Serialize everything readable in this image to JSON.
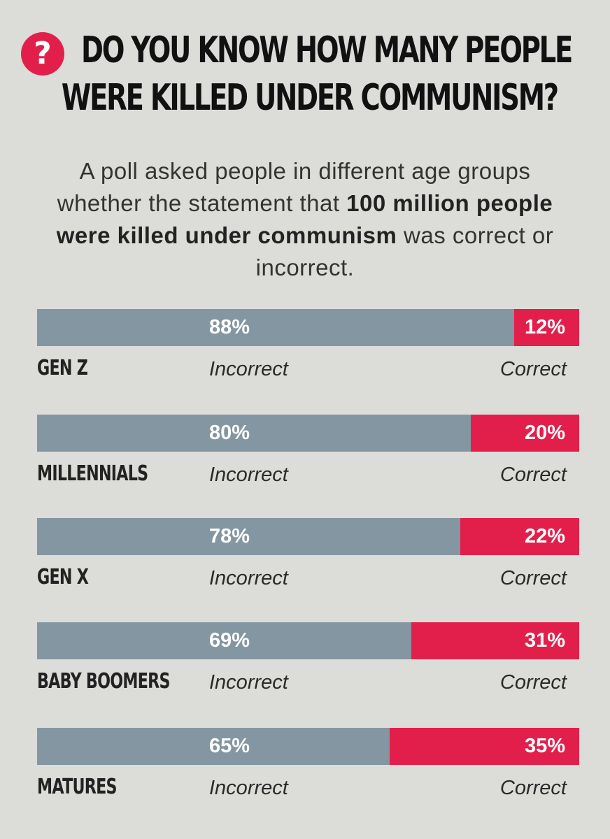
{
  "header": {
    "icon": "question-mark-icon",
    "icon_glyph": "?",
    "title_lines": [
      "DO YOU KNOW HOW MANY PEOPLE",
      "WERE KILLED UNDER COMMUNISM?"
    ]
  },
  "subtitle": {
    "part1": "A poll asked people in different age groups whether the statement that ",
    "bold": "100 million people were killed under communism",
    "part2": " was correct or incorrect."
  },
  "colors": {
    "background": "#dcdcd9",
    "incorrect": "#8496a1",
    "correct": "#e21f4a",
    "icon": "#e21f4a"
  },
  "chart_data": {
    "type": "bar",
    "stacked": true,
    "orientation": "horizontal",
    "unit": "%",
    "categories": [
      "GEN Z",
      "MILLENNIALS",
      "GEN X",
      "BABY BOOMERS",
      "MATURES"
    ],
    "series": [
      {
        "name": "Incorrect",
        "values": [
          88,
          80,
          78,
          69,
          65
        ]
      },
      {
        "name": "Correct",
        "values": [
          12,
          20,
          22,
          31,
          35
        ]
      }
    ],
    "xlim": [
      0,
      100
    ]
  }
}
